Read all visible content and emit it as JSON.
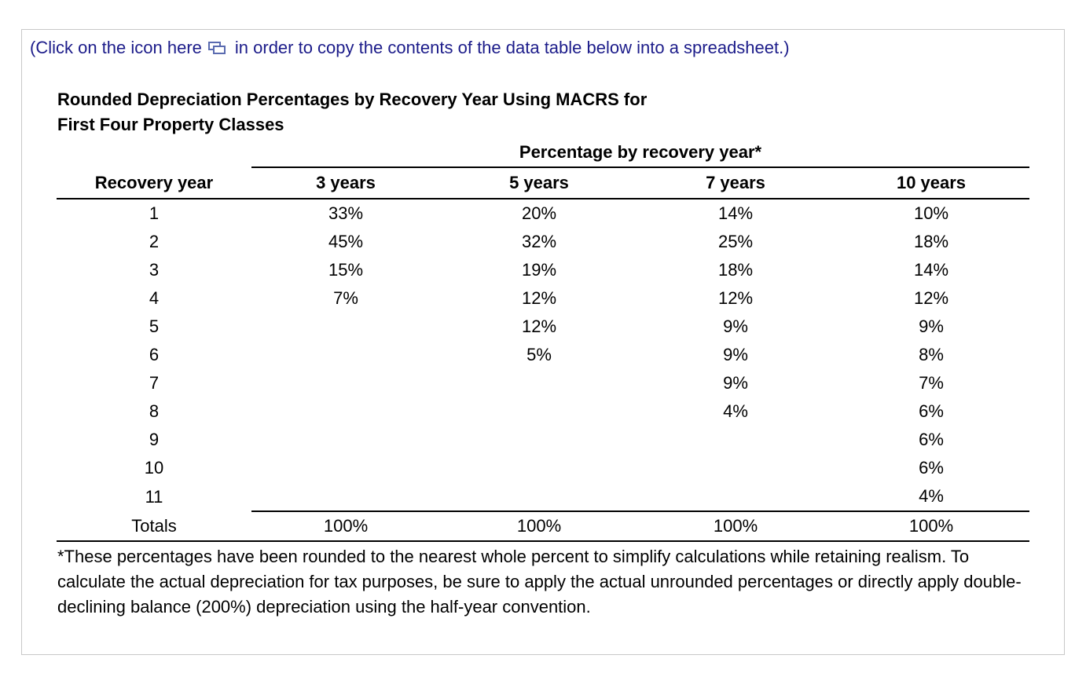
{
  "instruction": {
    "before_icon": "(Click on the icon here",
    "after_icon": "in order to copy the contents of the data table below into a spreadsheet.)"
  },
  "title_lines": [
    "Rounded Depreciation Percentages by Recovery Year Using MACRS for",
    "First Four Property Classes"
  ],
  "table": {
    "group_header": "Percentage by recovery year*",
    "headers": [
      "Recovery year",
      "3 years",
      "5 years",
      "7 years",
      "10 years"
    ],
    "rows": [
      [
        "1",
        "33%",
        "20%",
        "14%",
        "10%"
      ],
      [
        "2",
        "45%",
        "32%",
        "25%",
        "18%"
      ],
      [
        "3",
        "15%",
        "19%",
        "18%",
        "14%"
      ],
      [
        "4",
        "7%",
        "12%",
        "12%",
        "12%"
      ],
      [
        "5",
        null,
        "12%",
        "9%",
        "9%"
      ],
      [
        "6",
        null,
        "5%",
        "9%",
        "8%"
      ],
      [
        "7",
        null,
        null,
        "9%",
        "7%"
      ],
      [
        "8",
        null,
        null,
        "4%",
        "6%"
      ],
      [
        "9",
        null,
        null,
        null,
        "6%"
      ],
      [
        "10",
        null,
        null,
        null,
        "6%"
      ],
      [
        "11",
        null,
        null,
        null,
        "4%"
      ]
    ],
    "totals": [
      "Totals",
      "100%",
      "100%",
      "100%",
      "100%"
    ]
  },
  "footnote": "*These percentages have been rounded to the nearest whole percent to simplify calculations while retaining realism. To calculate the actual depreciation for tax purposes, be sure to apply the actual unrounded percentages or directly apply double-declining balance (200%) depreciation using the half-year convention."
}
